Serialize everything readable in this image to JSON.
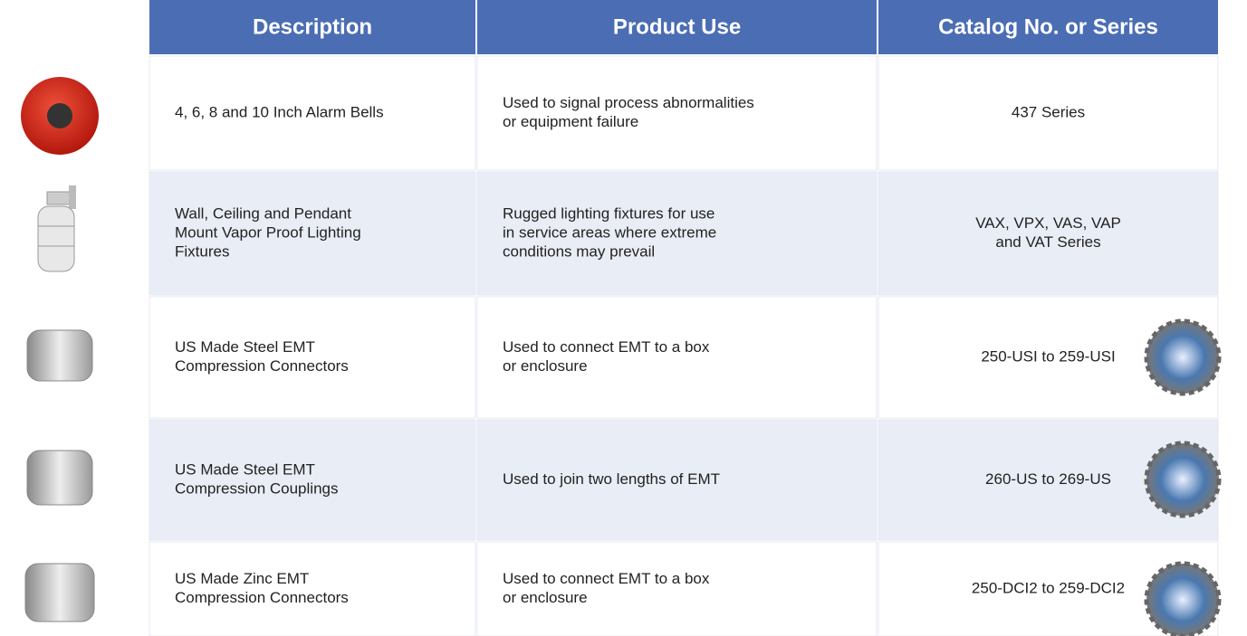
{
  "table": {
    "header": [
      "Description",
      "Product Use",
      "Catalog No. or Series"
    ],
    "rows": [
      {
        "description": [
          "4, 6, 8 and 10 Inch Alarm Bells"
        ],
        "use": [
          "Used to signal process abnormalities",
          "or equipment failure"
        ],
        "catalog": [
          "437 Series"
        ]
      },
      {
        "description": [
          "Wall, Ceiling and Pendant",
          "Mount Vapor Proof Lighting",
          "Fixtures"
        ],
        "use": [
          "Rugged lighting fixtures for use",
          "in service areas where extreme",
          "conditions may prevail"
        ],
        "catalog": [
          "VAX, VPX, VAS, VAP",
          "and VAT Series"
        ]
      },
      {
        "description": [
          "US Made Steel EMT",
          "Compression Connectors"
        ],
        "use": [
          "Used to connect EMT to a box",
          "or enclosure"
        ],
        "catalog": [
          "250-USI to 259-USI"
        ]
      },
      {
        "description": [
          "US Made Steel EMT",
          "Compression Couplings"
        ],
        "use": [
          "Used to join two lengths of EMT"
        ],
        "catalog": [
          "260-US to 269-US"
        ]
      },
      {
        "description": [
          "US Made Zinc EMT",
          "Compression Connectors"
        ],
        "use": [
          "Used to connect EMT to a box",
          "or enclosure"
        ],
        "catalog": [
          "250-DCI2 to 259-DCI2"
        ]
      }
    ]
  }
}
